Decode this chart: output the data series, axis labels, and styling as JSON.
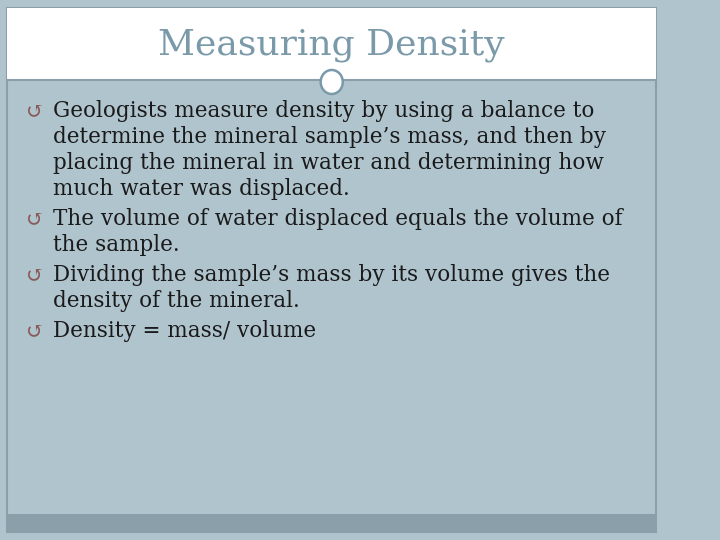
{
  "title": "Measuring Density",
  "title_color": "#7a9aaa",
  "title_fontsize": 26,
  "bg_color": "#b0c4ce",
  "header_bg_color": "#ffffff",
  "border_color": "#8a9faa",
  "footer_color": "#8a9faa",
  "text_color": "#1a1a1a",
  "bullet_color": "#8a5a5a",
  "bullet_symbol": "↺",
  "body_fontsize": 15.5,
  "bullets": [
    {
      "first_line": "Geologists measure density by using a balance to",
      "rest_lines": [
        "determine the mineral sample’s mass, and then by",
        "placing the mineral in water and determining how",
        "much water was displaced."
      ]
    },
    {
      "first_line": "The volume of water displaced equals the volume of",
      "rest_lines": [
        "the sample."
      ]
    },
    {
      "first_line": "Dividing the sample’s mass by its volume gives the",
      "rest_lines": [
        "density of the mineral."
      ]
    },
    {
      "first_line": "Density = mass/ volume",
      "rest_lines": []
    }
  ]
}
